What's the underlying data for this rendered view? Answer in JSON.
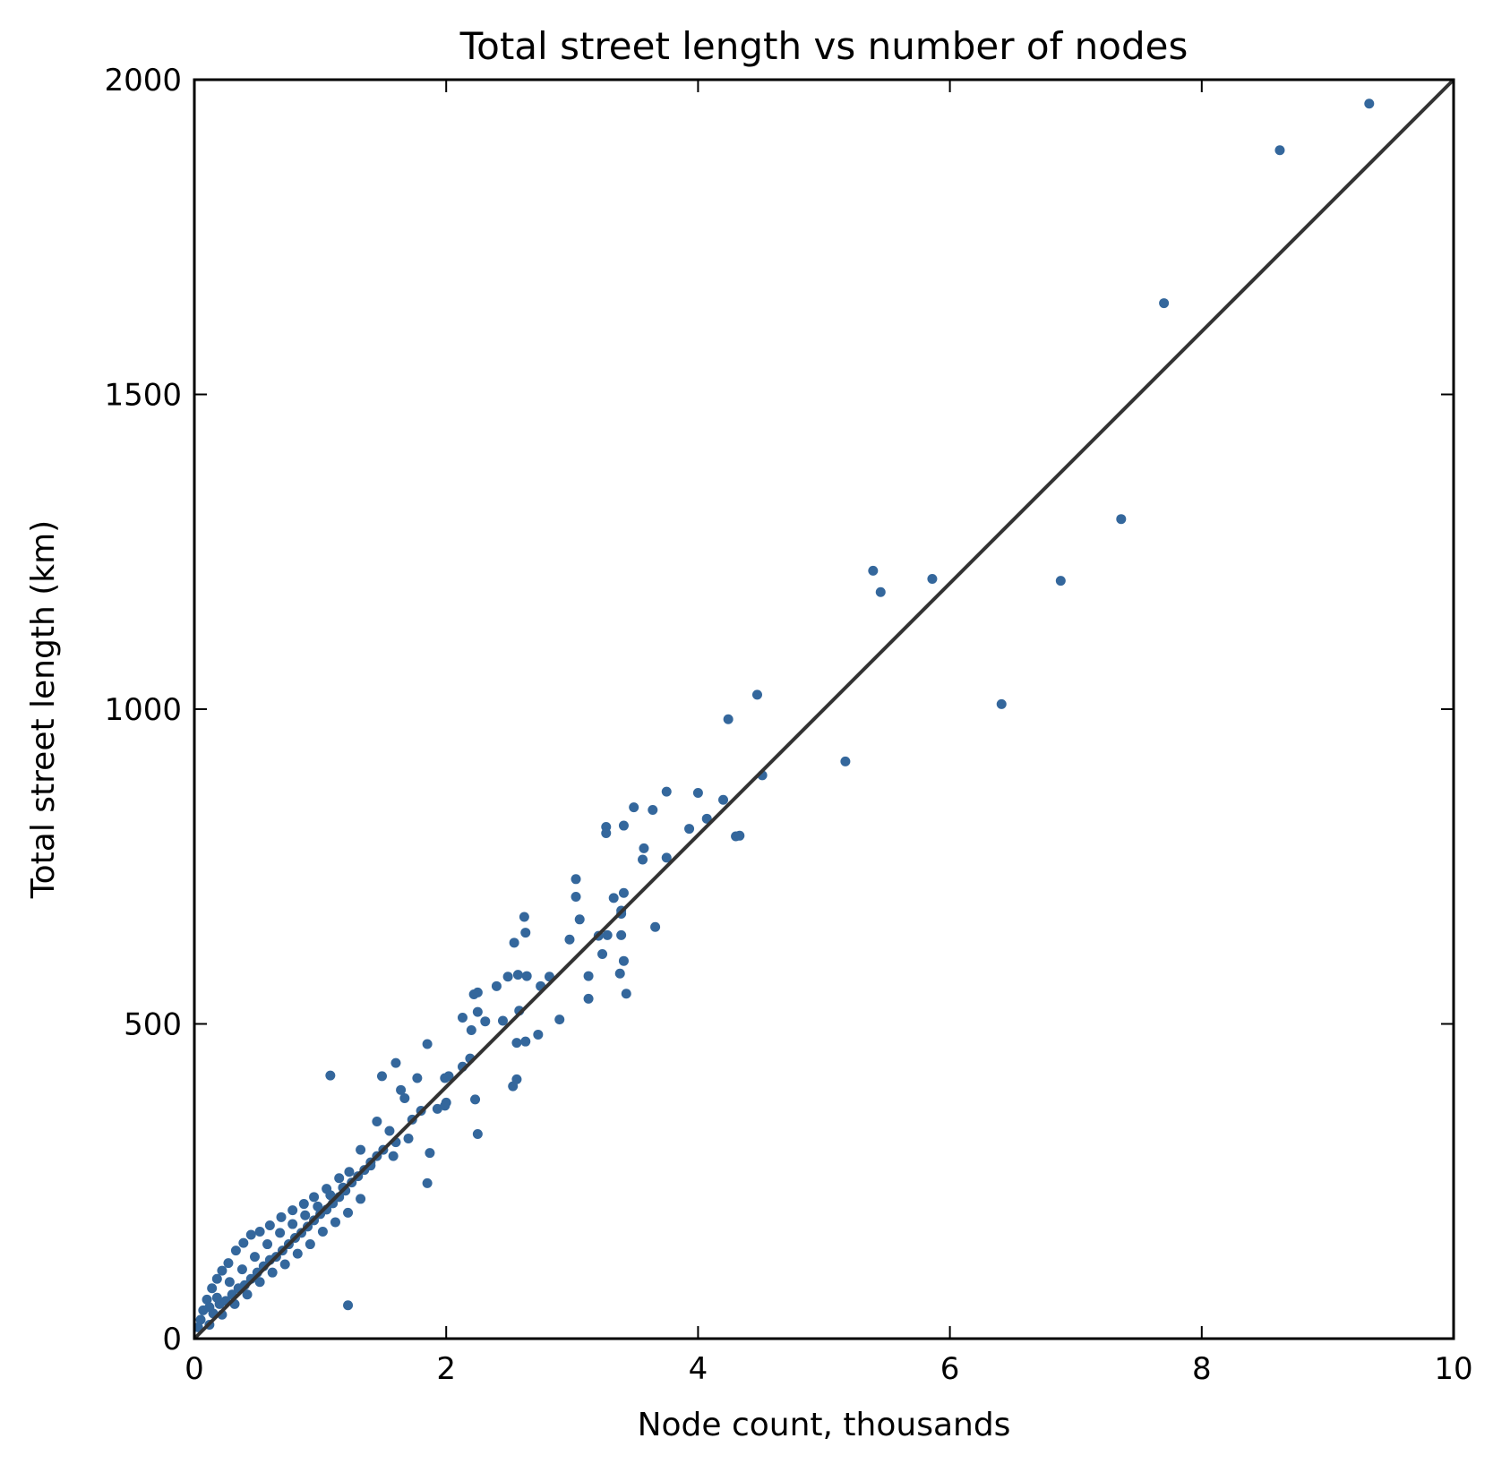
{
  "chart_data": {
    "type": "scatter",
    "title": "Total street length vs number of nodes",
    "xlabel": "Node count, thousands",
    "ylabel": "Total street length (km)",
    "xlim": [
      0,
      10
    ],
    "ylim": [
      0,
      2000
    ],
    "xticks": [
      "0",
      "2",
      "4",
      "6",
      "8",
      "10"
    ],
    "yticks": [
      "0",
      "500",
      "1000",
      "1500",
      "2000"
    ],
    "grid": false,
    "colors": {
      "points": "#34679c",
      "fit_line": "#333333"
    },
    "fit_line": {
      "x": [
        0,
        10
      ],
      "y": [
        0,
        2000
      ]
    },
    "points": [
      [
        9.33,
        1962
      ],
      [
        8.62,
        1888
      ],
      [
        7.7,
        1645
      ],
      [
        7.36,
        1302
      ],
      [
        6.88,
        1204
      ],
      [
        6.41,
        1008
      ],
      [
        5.86,
        1207
      ],
      [
        5.39,
        1220
      ],
      [
        5.45,
        1186
      ],
      [
        5.17,
        917
      ],
      [
        4.47,
        1023
      ],
      [
        4.51,
        895
      ],
      [
        4.24,
        984
      ],
      [
        4.3,
        798
      ],
      [
        4.33,
        799
      ],
      [
        4.2,
        856
      ],
      [
        4.07,
        826
      ],
      [
        4.0,
        867
      ],
      [
        3.93,
        810
      ],
      [
        3.75,
        869
      ],
      [
        3.75,
        764
      ],
      [
        3.64,
        840
      ],
      [
        3.49,
        844
      ],
      [
        3.41,
        815
      ],
      [
        3.27,
        813
      ],
      [
        3.27,
        803
      ],
      [
        3.56,
        761
      ],
      [
        3.57,
        779
      ],
      [
        3.41,
        708
      ],
      [
        3.39,
        680
      ],
      [
        3.39,
        675
      ],
      [
        3.33,
        700
      ],
      [
        3.39,
        641
      ],
      [
        3.28,
        641
      ],
      [
        3.21,
        640
      ],
      [
        3.24,
        611
      ],
      [
        3.06,
        666
      ],
      [
        3.03,
        730
      ],
      [
        3.03,
        702
      ],
      [
        2.98,
        634
      ],
      [
        3.66,
        654
      ],
      [
        3.41,
        600
      ],
      [
        3.38,
        580
      ],
      [
        3.43,
        548
      ],
      [
        3.13,
        576
      ],
      [
        3.13,
        540
      ],
      [
        2.9,
        507
      ],
      [
        2.82,
        575
      ],
      [
        2.75,
        560
      ],
      [
        2.73,
        483
      ],
      [
        2.64,
        576
      ],
      [
        2.63,
        645
      ],
      [
        2.62,
        670
      ],
      [
        2.54,
        629
      ],
      [
        2.57,
        578
      ],
      [
        2.49,
        575
      ],
      [
        2.4,
        560
      ],
      [
        2.58,
        521
      ],
      [
        2.63,
        472
      ],
      [
        2.56,
        470
      ],
      [
        2.45,
        505
      ],
      [
        2.31,
        504
      ],
      [
        2.25,
        550
      ],
      [
        2.22,
        547
      ],
      [
        2.2,
        490
      ],
      [
        2.25,
        519
      ],
      [
        2.13,
        510
      ],
      [
        2.19,
        445
      ],
      [
        2.13,
        432
      ],
      [
        2.56,
        412
      ],
      [
        2.53,
        401
      ],
      [
        1.99,
        414
      ],
      [
        2.02,
        417
      ],
      [
        1.85,
        468
      ],
      [
        1.77,
        414
      ],
      [
        1.6,
        438
      ],
      [
        1.49,
        417
      ],
      [
        1.64,
        395
      ],
      [
        1.67,
        382
      ],
      [
        1.73,
        348
      ],
      [
        1.8,
        362
      ],
      [
        1.93,
        365
      ],
      [
        1.99,
        370
      ],
      [
        2.0,
        375
      ],
      [
        2.23,
        380
      ],
      [
        2.25,
        325
      ],
      [
        1.87,
        295
      ],
      [
        1.85,
        247
      ],
      [
        1.08,
        418
      ],
      [
        1.22,
        53
      ],
      [
        1.45,
        345
      ],
      [
        1.55,
        330
      ],
      [
        1.6,
        312
      ],
      [
        1.7,
        318
      ],
      [
        1.58,
        290
      ],
      [
        1.4,
        280
      ],
      [
        1.32,
        300
      ],
      [
        1.23,
        265
      ],
      [
        1.15,
        255
      ],
      [
        1.05,
        238
      ],
      [
        0.95,
        225
      ],
      [
        0.87,
        214
      ],
      [
        0.78,
        204
      ],
      [
        0.69,
        193
      ],
      [
        0.6,
        180
      ],
      [
        0.52,
        170
      ],
      [
        0.45,
        165
      ],
      [
        0.39,
        152
      ],
      [
        0.33,
        140
      ],
      [
        0.27,
        120
      ],
      [
        0.22,
        108
      ],
      [
        0.18,
        95
      ],
      [
        0.14,
        80
      ],
      [
        0.1,
        62
      ],
      [
        0.07,
        45
      ],
      [
        0.05,
        30
      ],
      [
        0.03,
        18
      ],
      [
        0.15,
        40
      ],
      [
        0.2,
        55
      ],
      [
        0.25,
        60
      ],
      [
        0.3,
        70
      ],
      [
        0.35,
        80
      ],
      [
        0.4,
        85
      ],
      [
        0.45,
        95
      ],
      [
        0.5,
        105
      ],
      [
        0.55,
        115
      ],
      [
        0.6,
        125
      ],
      [
        0.65,
        130
      ],
      [
        0.7,
        140
      ],
      [
        0.75,
        150
      ],
      [
        0.8,
        160
      ],
      [
        0.85,
        168
      ],
      [
        0.9,
        178
      ],
      [
        0.95,
        188
      ],
      [
        1.0,
        198
      ],
      [
        1.05,
        205
      ],
      [
        1.1,
        215
      ],
      [
        1.15,
        225
      ],
      [
        1.2,
        235
      ],
      [
        1.25,
        248
      ],
      [
        1.3,
        258
      ],
      [
        1.35,
        268
      ],
      [
        1.4,
        275
      ],
      [
        1.45,
        290
      ],
      [
        1.5,
        300
      ],
      [
        0.62,
        105
      ],
      [
        0.72,
        118
      ],
      [
        0.82,
        135
      ],
      [
        0.92,
        150
      ],
      [
        1.02,
        170
      ],
      [
        1.12,
        185
      ],
      [
        1.22,
        200
      ],
      [
        1.32,
        222
      ],
      [
        0.58,
        150
      ],
      [
        0.68,
        168
      ],
      [
        0.78,
        182
      ],
      [
        0.88,
        196
      ],
      [
        0.98,
        210
      ],
      [
        1.08,
        228
      ],
      [
        1.18,
        240
      ],
      [
        0.48,
        130
      ],
      [
        0.38,
        110
      ],
      [
        0.28,
        90
      ],
      [
        0.18,
        65
      ],
      [
        0.12,
        50
      ],
      [
        0.42,
        70
      ],
      [
        0.52,
        90
      ],
      [
        0.32,
        55
      ],
      [
        0.22,
        38
      ],
      [
        0.12,
        22
      ]
    ]
  }
}
